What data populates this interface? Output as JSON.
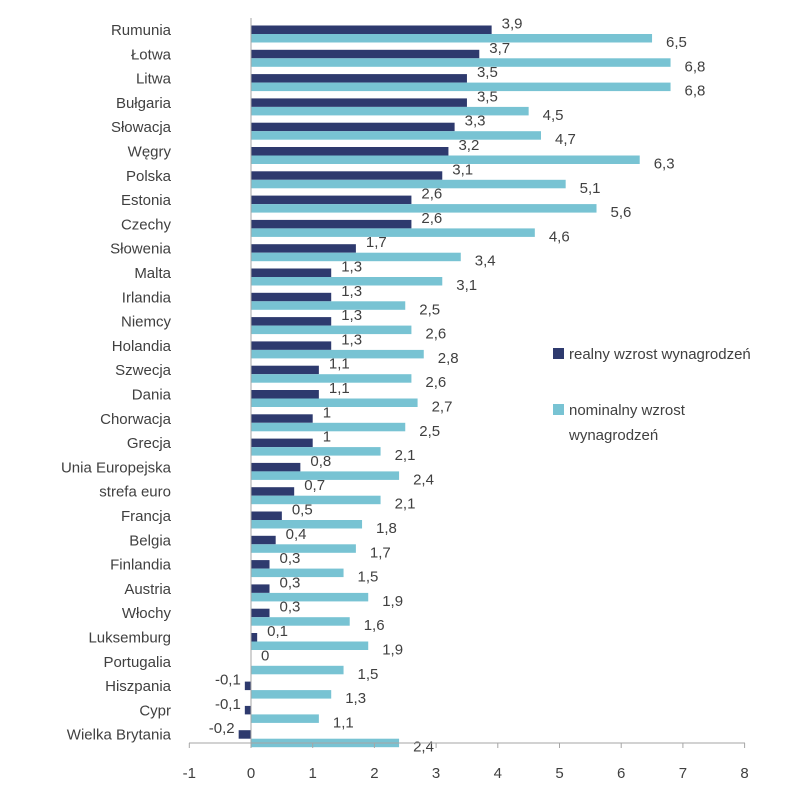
{
  "chart_data": {
    "type": "bar",
    "orientation": "horizontal",
    "title": "",
    "xlabel": "",
    "ylabel": "",
    "xlim": [
      -1,
      8
    ],
    "xticks": [
      -1,
      0,
      1,
      2,
      3,
      4,
      5,
      6,
      7,
      8
    ],
    "grid": false,
    "legend_position": "right",
    "categories": [
      "Rumunia",
      "Łotwa",
      "Litwa",
      "Bułgaria",
      "Słowacja",
      "Węgry",
      "Polska",
      "Estonia",
      "Czechy",
      "Słowenia",
      "Malta",
      "Irlandia",
      "Niemcy",
      "Holandia",
      "Szwecja",
      "Dania",
      "Chorwacja",
      "Grecja",
      "Unia Europejska",
      "strefa euro",
      "Francja",
      "Belgia",
      "Finlandia",
      "Austria",
      "Włochy",
      "Luksemburg",
      "Portugalia",
      "Hiszpania",
      "Cypr",
      "Wielka Brytania"
    ],
    "series": [
      {
        "name": "realny wzrost wynagrodzeń",
        "color": "#2e3a6e",
        "values": [
          3.9,
          3.7,
          3.5,
          3.5,
          3.3,
          3.2,
          3.1,
          2.6,
          2.6,
          1.7,
          1.3,
          1.3,
          1.3,
          1.3,
          1.1,
          1.1,
          1,
          1,
          0.8,
          0.7,
          0.5,
          0.4,
          0.3,
          0.3,
          0.3,
          0.1,
          0,
          -0.1,
          -0.1,
          -0.2
        ],
        "labels": [
          "3,9",
          "3,7",
          "3,5",
          "3,5",
          "3,3",
          "3,2",
          "3,1",
          "2,6",
          "2,6",
          "1,7",
          "1,3",
          "1,3",
          "1,3",
          "1,3",
          "1,1",
          "1,1",
          "1",
          "1",
          "0,8",
          "0,7",
          "0,5",
          "0,4",
          "0,3",
          "0,3",
          "0,3",
          "0,1",
          "0",
          "-0,1",
          "-0,1",
          "-0,2"
        ]
      },
      {
        "name": "nominalny wzrost wynagrodzeń",
        "color": "#78c3d3",
        "values": [
          6.5,
          6.8,
          6.8,
          4.5,
          4.7,
          6.3,
          5.1,
          5.6,
          4.6,
          3.4,
          3.1,
          2.5,
          2.6,
          2.8,
          2.6,
          2.7,
          2.5,
          2.1,
          2.4,
          2.1,
          1.8,
          1.7,
          1.5,
          1.9,
          1.6,
          1.9,
          1.5,
          1.3,
          1.1,
          2.4
        ],
        "labels": [
          "6,5",
          "6,8",
          "6,8",
          "4,5",
          "4,7",
          "6,3",
          "5,1",
          "5,6",
          "4,6",
          "3,4",
          "3,1",
          "2,5",
          "2,6",
          "2,8",
          "2,6",
          "2,7",
          "2,5",
          "2,1",
          "2,4",
          "2,1",
          "1,8",
          "1,7",
          "1,5",
          "1,9",
          "1,6",
          "1,9",
          "1,5",
          "1,3",
          "1,1",
          "2,4"
        ]
      }
    ],
    "legend": {
      "real": [
        "realny wzrost wynagrodzeń"
      ],
      "nominal": [
        "nominalny wzrost",
        "wynagrodzeń"
      ]
    }
  }
}
